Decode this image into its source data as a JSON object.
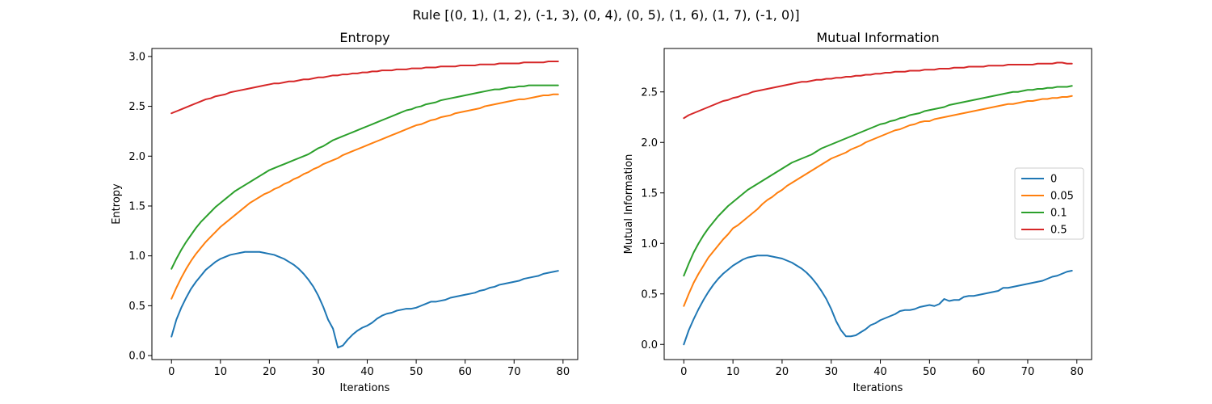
{
  "figure": {
    "suptitle": "Rule [(0, 1), (1, 2), (-1, 3), (0, 4), (0, 5), (1, 6), (1, 7), (-1, 0)]"
  },
  "chart_data": [
    {
      "type": "line",
      "title": "Entropy",
      "xlabel": "Iterations",
      "ylabel": "Entropy",
      "xlim": [
        -4,
        83
      ],
      "ylim": [
        -0.04,
        3.08
      ],
      "xticks": [
        0,
        10,
        20,
        30,
        40,
        50,
        60,
        70,
        80
      ],
      "xtick_labels": [
        "0",
        "10",
        "20",
        "30",
        "40",
        "50",
        "60",
        "70",
        "80"
      ],
      "yticks": [
        0.0,
        0.5,
        1.0,
        1.5,
        2.0,
        2.5,
        3.0
      ],
      "ytick_labels": [
        "0.0",
        "0.5",
        "1.0",
        "1.5",
        "2.0",
        "2.5",
        "3.0"
      ],
      "legend": null,
      "grid": false,
      "series": [
        {
          "name": "0",
          "color": "#1f77b4",
          "values": [
            0.19,
            0.36,
            0.48,
            0.58,
            0.67,
            0.74,
            0.8,
            0.86,
            0.9,
            0.94,
            0.97,
            0.99,
            1.01,
            1.02,
            1.03,
            1.04,
            1.04,
            1.04,
            1.04,
            1.03,
            1.02,
            1.01,
            0.99,
            0.97,
            0.94,
            0.91,
            0.87,
            0.82,
            0.76,
            0.69,
            0.6,
            0.49,
            0.36,
            0.27,
            0.08,
            0.1,
            0.16,
            0.21,
            0.25,
            0.28,
            0.3,
            0.33,
            0.37,
            0.4,
            0.42,
            0.43,
            0.45,
            0.46,
            0.47,
            0.47,
            0.48,
            0.5,
            0.52,
            0.54,
            0.54,
            0.55,
            0.56,
            0.58,
            0.59,
            0.6,
            0.61,
            0.62,
            0.63,
            0.65,
            0.66,
            0.68,
            0.69,
            0.71,
            0.72,
            0.73,
            0.74,
            0.75,
            0.77,
            0.78,
            0.79,
            0.8,
            0.82,
            0.83,
            0.84,
            0.85
          ]
        },
        {
          "name": "0.05",
          "color": "#ff7f0e",
          "values": [
            0.57,
            0.68,
            0.78,
            0.87,
            0.95,
            1.02,
            1.08,
            1.14,
            1.19,
            1.24,
            1.29,
            1.33,
            1.37,
            1.41,
            1.45,
            1.49,
            1.53,
            1.56,
            1.59,
            1.62,
            1.64,
            1.67,
            1.69,
            1.72,
            1.74,
            1.77,
            1.79,
            1.82,
            1.84,
            1.87,
            1.89,
            1.92,
            1.94,
            1.96,
            1.98,
            2.01,
            2.03,
            2.05,
            2.07,
            2.09,
            2.11,
            2.13,
            2.15,
            2.17,
            2.19,
            2.21,
            2.23,
            2.25,
            2.27,
            2.29,
            2.31,
            2.32,
            2.34,
            2.36,
            2.37,
            2.39,
            2.4,
            2.41,
            2.43,
            2.44,
            2.45,
            2.46,
            2.47,
            2.48,
            2.5,
            2.51,
            2.52,
            2.53,
            2.54,
            2.55,
            2.56,
            2.57,
            2.57,
            2.58,
            2.59,
            2.6,
            2.61,
            2.61,
            2.62,
            2.62
          ]
        },
        {
          "name": "0.1",
          "color": "#2ca02c",
          "values": [
            0.87,
            0.97,
            1.06,
            1.14,
            1.21,
            1.28,
            1.34,
            1.39,
            1.44,
            1.49,
            1.53,
            1.57,
            1.61,
            1.65,
            1.68,
            1.71,
            1.74,
            1.77,
            1.8,
            1.83,
            1.86,
            1.88,
            1.9,
            1.92,
            1.94,
            1.96,
            1.98,
            2.0,
            2.02,
            2.05,
            2.08,
            2.1,
            2.13,
            2.16,
            2.18,
            2.2,
            2.22,
            2.24,
            2.26,
            2.28,
            2.3,
            2.32,
            2.34,
            2.36,
            2.38,
            2.4,
            2.42,
            2.44,
            2.46,
            2.47,
            2.49,
            2.5,
            2.52,
            2.53,
            2.54,
            2.56,
            2.57,
            2.58,
            2.59,
            2.6,
            2.61,
            2.62,
            2.63,
            2.64,
            2.65,
            2.66,
            2.67,
            2.67,
            2.68,
            2.69,
            2.69,
            2.7,
            2.7,
            2.71,
            2.71,
            2.71,
            2.71,
            2.71,
            2.71,
            2.71
          ]
        },
        {
          "name": "0.5",
          "color": "#d62728",
          "values": [
            2.43,
            2.45,
            2.47,
            2.49,
            2.51,
            2.53,
            2.55,
            2.57,
            2.58,
            2.6,
            2.61,
            2.62,
            2.64,
            2.65,
            2.66,
            2.67,
            2.68,
            2.69,
            2.7,
            2.71,
            2.72,
            2.73,
            2.73,
            2.74,
            2.75,
            2.75,
            2.76,
            2.77,
            2.77,
            2.78,
            2.79,
            2.79,
            2.8,
            2.81,
            2.81,
            2.82,
            2.82,
            2.83,
            2.83,
            2.84,
            2.84,
            2.85,
            2.85,
            2.86,
            2.86,
            2.86,
            2.87,
            2.87,
            2.87,
            2.88,
            2.88,
            2.88,
            2.89,
            2.89,
            2.89,
            2.9,
            2.9,
            2.9,
            2.9,
            2.91,
            2.91,
            2.91,
            2.91,
            2.92,
            2.92,
            2.92,
            2.92,
            2.93,
            2.93,
            2.93,
            2.93,
            2.93,
            2.94,
            2.94,
            2.94,
            2.94,
            2.94,
            2.95,
            2.95,
            2.95
          ]
        }
      ]
    },
    {
      "type": "line",
      "title": "Mutual Information",
      "xlabel": "Iterations",
      "ylabel": "Mutual Information",
      "xlim": [
        -4,
        83
      ],
      "ylim": [
        -0.15,
        2.93
      ],
      "xticks": [
        0,
        10,
        20,
        30,
        40,
        50,
        60,
        70,
        80
      ],
      "xtick_labels": [
        "0",
        "10",
        "20",
        "30",
        "40",
        "50",
        "60",
        "70",
        "80"
      ],
      "yticks": [
        0.0,
        0.5,
        1.0,
        1.5,
        2.0,
        2.5
      ],
      "ytick_labels": [
        "0.0",
        "0.5",
        "1.0",
        "1.5",
        "2.0",
        "2.5"
      ],
      "legend": "center-right",
      "grid": false,
      "series": [
        {
          "name": "0",
          "color": "#1f77b4",
          "values": [
            0.0,
            0.14,
            0.25,
            0.35,
            0.44,
            0.52,
            0.59,
            0.65,
            0.7,
            0.74,
            0.78,
            0.81,
            0.84,
            0.86,
            0.87,
            0.88,
            0.88,
            0.88,
            0.87,
            0.86,
            0.85,
            0.83,
            0.81,
            0.78,
            0.75,
            0.71,
            0.66,
            0.6,
            0.53,
            0.45,
            0.35,
            0.23,
            0.14,
            0.08,
            0.08,
            0.09,
            0.12,
            0.15,
            0.19,
            0.21,
            0.24,
            0.26,
            0.28,
            0.3,
            0.33,
            0.34,
            0.34,
            0.35,
            0.37,
            0.38,
            0.39,
            0.38,
            0.4,
            0.45,
            0.43,
            0.44,
            0.44,
            0.47,
            0.48,
            0.48,
            0.49,
            0.5,
            0.51,
            0.52,
            0.53,
            0.56,
            0.56,
            0.57,
            0.58,
            0.59,
            0.6,
            0.61,
            0.62,
            0.63,
            0.65,
            0.67,
            0.68,
            0.7,
            0.72,
            0.73
          ]
        },
        {
          "name": "0.05",
          "color": "#ff7f0e",
          "values": [
            0.38,
            0.5,
            0.61,
            0.7,
            0.78,
            0.86,
            0.92,
            0.98,
            1.04,
            1.09,
            1.15,
            1.18,
            1.22,
            1.26,
            1.3,
            1.34,
            1.39,
            1.43,
            1.46,
            1.5,
            1.53,
            1.57,
            1.6,
            1.63,
            1.66,
            1.69,
            1.72,
            1.75,
            1.78,
            1.81,
            1.84,
            1.86,
            1.88,
            1.9,
            1.93,
            1.95,
            1.97,
            2.0,
            2.02,
            2.04,
            2.06,
            2.08,
            2.1,
            2.12,
            2.13,
            2.15,
            2.17,
            2.18,
            2.2,
            2.21,
            2.21,
            2.23,
            2.24,
            2.25,
            2.26,
            2.27,
            2.28,
            2.29,
            2.3,
            2.31,
            2.32,
            2.33,
            2.34,
            2.35,
            2.36,
            2.37,
            2.38,
            2.38,
            2.39,
            2.4,
            2.41,
            2.41,
            2.42,
            2.43,
            2.43,
            2.44,
            2.44,
            2.45,
            2.45,
            2.46
          ]
        },
        {
          "name": "0.1",
          "color": "#2ca02c",
          "values": [
            0.68,
            0.8,
            0.91,
            1.0,
            1.08,
            1.15,
            1.21,
            1.27,
            1.32,
            1.37,
            1.41,
            1.45,
            1.49,
            1.53,
            1.56,
            1.59,
            1.62,
            1.65,
            1.68,
            1.71,
            1.74,
            1.77,
            1.8,
            1.82,
            1.84,
            1.86,
            1.88,
            1.91,
            1.94,
            1.96,
            1.98,
            2.0,
            2.02,
            2.04,
            2.06,
            2.08,
            2.1,
            2.12,
            2.14,
            2.16,
            2.18,
            2.19,
            2.21,
            2.22,
            2.24,
            2.25,
            2.27,
            2.28,
            2.29,
            2.31,
            2.32,
            2.33,
            2.34,
            2.35,
            2.37,
            2.38,
            2.39,
            2.4,
            2.41,
            2.42,
            2.43,
            2.44,
            2.45,
            2.46,
            2.47,
            2.48,
            2.49,
            2.5,
            2.5,
            2.51,
            2.52,
            2.52,
            2.53,
            2.53,
            2.54,
            2.54,
            2.55,
            2.55,
            2.55,
            2.56
          ]
        },
        {
          "name": "0.5",
          "color": "#d62728",
          "values": [
            2.24,
            2.27,
            2.29,
            2.31,
            2.33,
            2.35,
            2.37,
            2.39,
            2.41,
            2.42,
            2.44,
            2.45,
            2.47,
            2.48,
            2.5,
            2.51,
            2.52,
            2.53,
            2.54,
            2.55,
            2.56,
            2.57,
            2.58,
            2.59,
            2.6,
            2.6,
            2.61,
            2.62,
            2.62,
            2.63,
            2.63,
            2.64,
            2.64,
            2.65,
            2.65,
            2.66,
            2.66,
            2.67,
            2.67,
            2.68,
            2.68,
            2.69,
            2.69,
            2.7,
            2.7,
            2.7,
            2.71,
            2.71,
            2.71,
            2.72,
            2.72,
            2.72,
            2.73,
            2.73,
            2.73,
            2.74,
            2.74,
            2.74,
            2.75,
            2.75,
            2.75,
            2.75,
            2.76,
            2.76,
            2.76,
            2.76,
            2.77,
            2.77,
            2.77,
            2.77,
            2.77,
            2.77,
            2.78,
            2.78,
            2.78,
            2.78,
            2.79,
            2.79,
            2.78,
            2.78
          ]
        }
      ]
    }
  ]
}
